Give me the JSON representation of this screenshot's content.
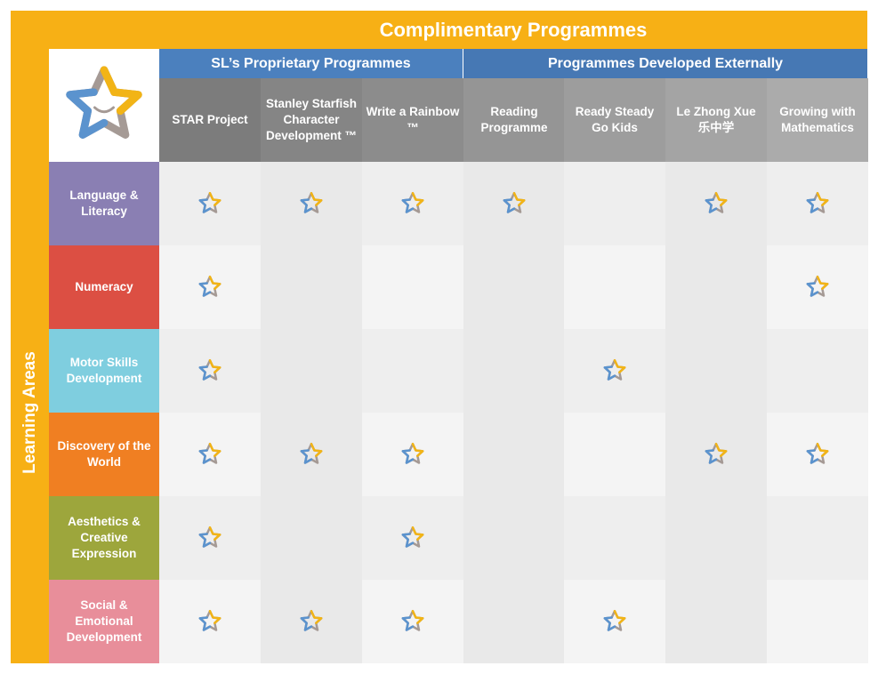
{
  "title": "Complimentary Programmes",
  "side_label": "Learning Areas",
  "groups": [
    {
      "label": "SL’s Proprietary Programmes"
    },
    {
      "label": "Programmes Developed Externally"
    }
  ],
  "columns": [
    {
      "label": "STAR Project",
      "color": "#7C7C7C"
    },
    {
      "label": "Stanley Starfish Character Development ™",
      "color": "#858585"
    },
    {
      "label": "Write a Rainbow ™",
      "color": "#8C8C8C"
    },
    {
      "label": "Reading Programme",
      "color": "#959595"
    },
    {
      "label": "Ready Steady Go Kids",
      "color": "#9D9D9D"
    },
    {
      "label": "Le Zhong Xue 乐中学",
      "color": "#A4A4A4"
    },
    {
      "label": "Growing with Mathematics",
      "color": "#ABABAB"
    }
  ],
  "rows": [
    {
      "label": "Language & Literacy",
      "color": "#8A7FB3",
      "marks": [
        true,
        true,
        true,
        true,
        false,
        true,
        true
      ]
    },
    {
      "label": "Numeracy",
      "color": "#DC4F43",
      "marks": [
        true,
        false,
        false,
        false,
        false,
        false,
        true
      ]
    },
    {
      "label": "Motor Skills Development",
      "color": "#7FCEDF",
      "marks": [
        true,
        false,
        false,
        false,
        true,
        false,
        false
      ]
    },
    {
      "label": "Discovery of the World",
      "color": "#F07F22",
      "marks": [
        true,
        true,
        true,
        false,
        false,
        true,
        true
      ]
    },
    {
      "label": "Aesthetics & Creative Expression",
      "color": "#9DA63C",
      "marks": [
        true,
        false,
        true,
        false,
        false,
        false,
        false
      ]
    },
    {
      "label": "Social & Emotional Development",
      "color": "#E88E9A",
      "marks": [
        true,
        true,
        true,
        false,
        true,
        false,
        false
      ]
    }
  ],
  "colors": {
    "frame": "#F7B015",
    "group_blue": "#4B80BE",
    "star_blue": "#5B93CE",
    "star_yellow": "#F2B416",
    "star_gray": "#A59A95"
  },
  "icons": {
    "logo": "starfish-logo-icon",
    "mark": "starfish-icon"
  }
}
